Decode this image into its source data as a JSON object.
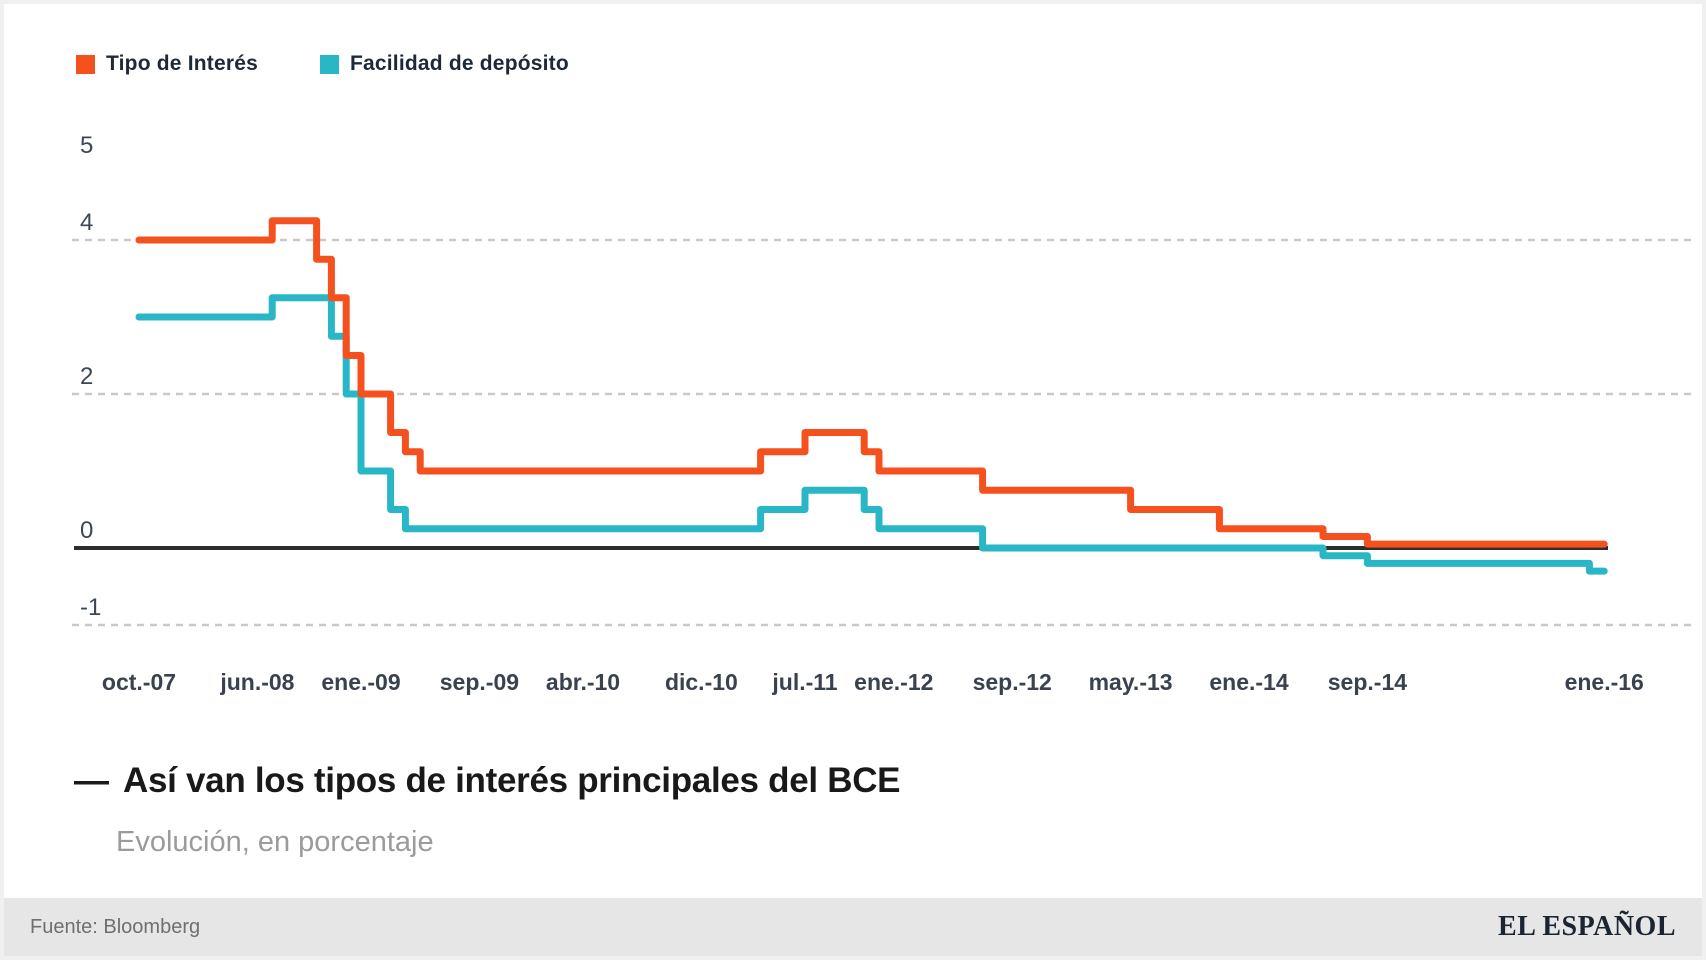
{
  "legend": {
    "items": [
      {
        "label": "Tipo de Interés",
        "color": "#f4511e"
      },
      {
        "label": "Facilidad de depósito",
        "color": "#29b6c6"
      }
    ]
  },
  "title": {
    "dash": "—",
    "text": "Así van los tipos de interés principales del BCE"
  },
  "subtitle": "Evolución, en porcentaje",
  "footer": {
    "source": "Fuente: Bloomberg",
    "brand": "EL ESPAÑOL"
  },
  "chart_data": {
    "type": "line",
    "style": "step-after",
    "title": "Así van los tipos de interés principales del BCE",
    "subtitle": "Evolución, en porcentaje",
    "x_unit": "months since oct-2007",
    "ylim": [
      -1.6,
      5.4
    ],
    "grid": "dashed horizontal at 4, 2 and -1; solid dark axis at 0",
    "legend_position": "top-left",
    "colors": {
      "tipo_de_interes": "#f4511e",
      "facilidad_de_deposito": "#29b6c6",
      "gridline": "#c9c9c9",
      "zero_axis": "#2d2d2d",
      "axis_text": "#39424e"
    },
    "y_ticks": [
      {
        "label": "5",
        "v": 5
      },
      {
        "label": "4",
        "v": 4
      },
      {
        "label": "2",
        "v": 2
      },
      {
        "label": "0",
        "v": 0
      },
      {
        "label": "-1",
        "v": -1
      }
    ],
    "gridlines_at": [
      4,
      2,
      -1
    ],
    "x_ticks": [
      {
        "label": "oct.-07",
        "m": 0
      },
      {
        "label": "jun.-08",
        "m": 8
      },
      {
        "label": "ene.-09",
        "m": 15
      },
      {
        "label": "sep.-09",
        "m": 23
      },
      {
        "label": "abr.-10",
        "m": 30
      },
      {
        "label": "dic.-10",
        "m": 38
      },
      {
        "label": "jul.-11",
        "m": 45
      },
      {
        "label": "ene.-12",
        "m": 51
      },
      {
        "label": "sep.-12",
        "m": 59
      },
      {
        "label": "may.-13",
        "m": 67
      },
      {
        "label": "ene.-14",
        "m": 75
      },
      {
        "label": "sep.-14",
        "m": 83
      },
      {
        "label": "ene.-16",
        "m": 99
      }
    ],
    "end_m": 99,
    "series": [
      {
        "name": "Tipo de Interés",
        "color": "#f4511e",
        "points_percent": [
          [
            0,
            4.0
          ],
          [
            9,
            4.25
          ],
          [
            12,
            3.75
          ],
          [
            13,
            3.25
          ],
          [
            14,
            2.5
          ],
          [
            15,
            2.0
          ],
          [
            17,
            1.5
          ],
          [
            18,
            1.25
          ],
          [
            19,
            1.0
          ],
          [
            42,
            1.25
          ],
          [
            45,
            1.5
          ],
          [
            49,
            1.25
          ],
          [
            50,
            1.0
          ],
          [
            57,
            0.75
          ],
          [
            67,
            0.5
          ],
          [
            73,
            0.25
          ],
          [
            80,
            0.15
          ],
          [
            83,
            0.05
          ]
        ]
      },
      {
        "name": "Facilidad de depósito",
        "color": "#29b6c6",
        "points_percent": [
          [
            0,
            3.0
          ],
          [
            9,
            3.25
          ],
          [
            13,
            2.75
          ],
          [
            14,
            2.0
          ],
          [
            15,
            1.0
          ],
          [
            17,
            0.5
          ],
          [
            18,
            0.25
          ],
          [
            42,
            0.5
          ],
          [
            45,
            0.75
          ],
          [
            49,
            0.5
          ],
          [
            50,
            0.25
          ],
          [
            57,
            0.0
          ],
          [
            80,
            -0.1
          ],
          [
            83,
            -0.2
          ],
          [
            98,
            -0.3
          ]
        ]
      }
    ]
  }
}
